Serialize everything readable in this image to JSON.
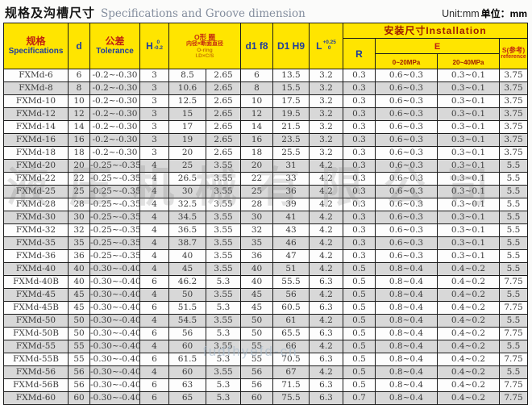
{
  "page": {
    "title_zh": "规格及沟槽尺寸",
    "title_en": "Specifications and Groove dimension",
    "unit_en": "Unit:mm",
    "unit_zh": "单位：mm"
  },
  "table": {
    "header": {
      "spec_zh": "规格",
      "spec_en": "Specifications",
      "d": "d",
      "tol_zh": "公差",
      "tol_en": "Tolerance",
      "h": "H",
      "h_sup": "0",
      "h_sub": "-0.2",
      "oring_l1": "O形 圈",
      "oring_l2": "内径×断面直径",
      "oring_l3": "O-ring",
      "oring_l4": "I.D×C/S",
      "d1f8": "d1 f8",
      "D1H9": "D1 H9",
      "L": "L",
      "L_sup": "+0.25",
      "L_sub": "0",
      "install": "安装尺寸Installation",
      "R": "R",
      "E": "E",
      "e1": "0~20MPa",
      "e2": "20~40MPa",
      "s_zh": "S(参考)",
      "s_en": "reference"
    },
    "rows": [
      [
        "FXMd-6",
        "6",
        "-0.2~-0.30",
        "3",
        "8.5",
        "2.65",
        "6",
        "13.5",
        "3.2",
        "0.3",
        "0.6~0.3",
        "0.3~0.1",
        "3.75"
      ],
      [
        "FXMd-8",
        "8",
        "-0.2~-0.30",
        "3",
        "10.6",
        "2.65",
        "8",
        "15.5",
        "3.2",
        "0.3",
        "0.6~0.3",
        "0.3~0.1",
        "3.75"
      ],
      [
        "FXMd-10",
        "10",
        "-0.2~-0.30",
        "3",
        "12.5",
        "2.65",
        "10",
        "17.5",
        "3.2",
        "0.3",
        "0.6~0.3",
        "0.3~0.1",
        "3.75"
      ],
      [
        "FXMd-12",
        "12",
        "-0.2~-0.30",
        "3",
        "15",
        "2.65",
        "12",
        "19.5",
        "3.2",
        "0.3",
        "0.6~0.3",
        "0.3~0.1",
        "3.75"
      ],
      [
        "FXMd-14",
        "14",
        "-0.2~-0.30",
        "3",
        "17",
        "2.65",
        "14",
        "21.5",
        "3.2",
        "0.3",
        "0.6~0.3",
        "0.3~0.1",
        "3.75"
      ],
      [
        "FXMd-16",
        "16",
        "-0.2~-0.30",
        "3",
        "19",
        "2.65",
        "16",
        "23.5",
        "3.2",
        "0.3",
        "0.6~0.3",
        "0.3~0.1",
        "3.75"
      ],
      [
        "FXMd-18",
        "18",
        "-0.2~-0.30",
        "3",
        "20",
        "2.65",
        "18",
        "25.5",
        "3.2",
        "0.3",
        "0.6~0.3",
        "0.3~0.1",
        "3.75"
      ],
      [
        "FXMd-20",
        "20",
        "-0.25~-0.35",
        "4",
        "25",
        "3.55",
        "20",
        "31",
        "4.2",
        "0.3",
        "0.6~0.3",
        "0.3~0.1",
        "5.5"
      ],
      [
        "FXMd-22",
        "22",
        "-0.25~-0.35",
        "4",
        "26.5",
        "3.55",
        "22",
        "33",
        "4.2",
        "0.3",
        "0.6~0.3",
        "0.3~0.1",
        "5.5"
      ],
      [
        "FXMd-25",
        "25",
        "-0.25~-0.35",
        "4",
        "30",
        "3.55",
        "25",
        "36",
        "4.2",
        "0.3",
        "0.6~0.3",
        "0.3~0.1",
        "5.5"
      ],
      [
        "FXMd-28",
        "28",
        "-0.25~-0.35",
        "4",
        "32.5",
        "3.55",
        "28",
        "39",
        "4.2",
        "0.3",
        "0.6~0.3",
        "0.3~0.1",
        "5.5"
      ],
      [
        "FXMd-30",
        "30",
        "-0.25~-0.35",
        "4",
        "34.5",
        "3.55",
        "30",
        "41",
        "4.2",
        "0.3",
        "0.6~0.3",
        "0.3~0.1",
        "5.5"
      ],
      [
        "FXMd-32",
        "32",
        "-0.25~-0.35",
        "4",
        "36.5",
        "3.55",
        "32",
        "43",
        "4.2",
        "0.3",
        "0.6~0.3",
        "0.3~0.1",
        "5.5"
      ],
      [
        "FXMd-35",
        "35",
        "-0.25~-0.35",
        "4",
        "38.7",
        "3.55",
        "35",
        "46",
        "4.2",
        "0.3",
        "0.6~0.3",
        "0.3~0.1",
        "5.5"
      ],
      [
        "FXMd-36",
        "36",
        "-0.25~-0.35",
        "4",
        "40",
        "3.55",
        "36",
        "47",
        "4.2",
        "0.3",
        "0.6~0.3",
        "0.3~0.1",
        "5.5"
      ],
      [
        "FXMd-40",
        "40",
        "-0.30~-0.40",
        "4",
        "45",
        "3.55",
        "40",
        "51",
        "4.2",
        "0.5",
        "0.8~0.4",
        "0.4~0.2",
        "5.5"
      ],
      [
        "FXMd-40B",
        "40",
        "-0.30~-0.40",
        "6",
        "46.2",
        "5.3",
        "40",
        "55.5",
        "6.3",
        "0.5",
        "0.8~0.4",
        "0.4~0.2",
        "7.75"
      ],
      [
        "FXMd-45",
        "45",
        "-0.30~-0.40",
        "4",
        "50",
        "3.55",
        "45",
        "56",
        "4.2",
        "0.5",
        "0.8~0.4",
        "0.4~0.2",
        "5.5"
      ],
      [
        "FXMd-45B",
        "45",
        "-0.30~-0.40",
        "6",
        "51.5",
        "5.3",
        "45",
        "60.5",
        "6.3",
        "0.5",
        "0.8~0.4",
        "0.4~0.2",
        "7.75"
      ],
      [
        "FXMd-50",
        "50",
        "-0.30~-0.40",
        "4",
        "54.5",
        "3.55",
        "50",
        "61",
        "4.2",
        "0.5",
        "0.8~0.4",
        "0.4~0.2",
        "5.5"
      ],
      [
        "FXMd-50B",
        "50",
        "-0.30~-0.40",
        "6",
        "56",
        "5.3",
        "50",
        "65.5",
        "6.3",
        "0.5",
        "0.8~0.4",
        "0.4~0.2",
        "7.75"
      ],
      [
        "FXMd-55",
        "55",
        "-0.30~-0.40",
        "4",
        "60",
        "3.55",
        "55",
        "66",
        "4.2",
        "0.5",
        "0.8~0.4",
        "0.4~0.2",
        "5.5"
      ],
      [
        "FXMd-55B",
        "55",
        "-0.30~-0.40",
        "6",
        "61.5",
        "5.3",
        "55",
        "70.5",
        "6.3",
        "0.5",
        "0.8~0.4",
        "0.4~0.2",
        "7.75"
      ],
      [
        "FXMd-56",
        "56",
        "-0.30~-0.40",
        "4",
        "60",
        "3.55",
        "56",
        "67",
        "4.2",
        "0.5",
        "0.8~0.4",
        "0.4~0.2",
        "5.5"
      ],
      [
        "FXMd-56B",
        "56",
        "-0.30~-0.40",
        "6",
        "63",
        "5.3",
        "56",
        "71.5",
        "6.3",
        "0.5",
        "0.8~0.4",
        "0.4~0.2",
        "7.75"
      ],
      [
        "FXMd-60",
        "60",
        "-0.30~-0.40",
        "6",
        "65",
        "5.3",
        "60",
        "75.5",
        "6.3",
        "0.7",
        "0.8~0.4",
        "0.4~0.2",
        "7.75"
      ]
    ]
  },
  "watermarks": {
    "center_text": "液压机械有限公司",
    "bottom_text": "fudfhyefd-ch"
  }
}
